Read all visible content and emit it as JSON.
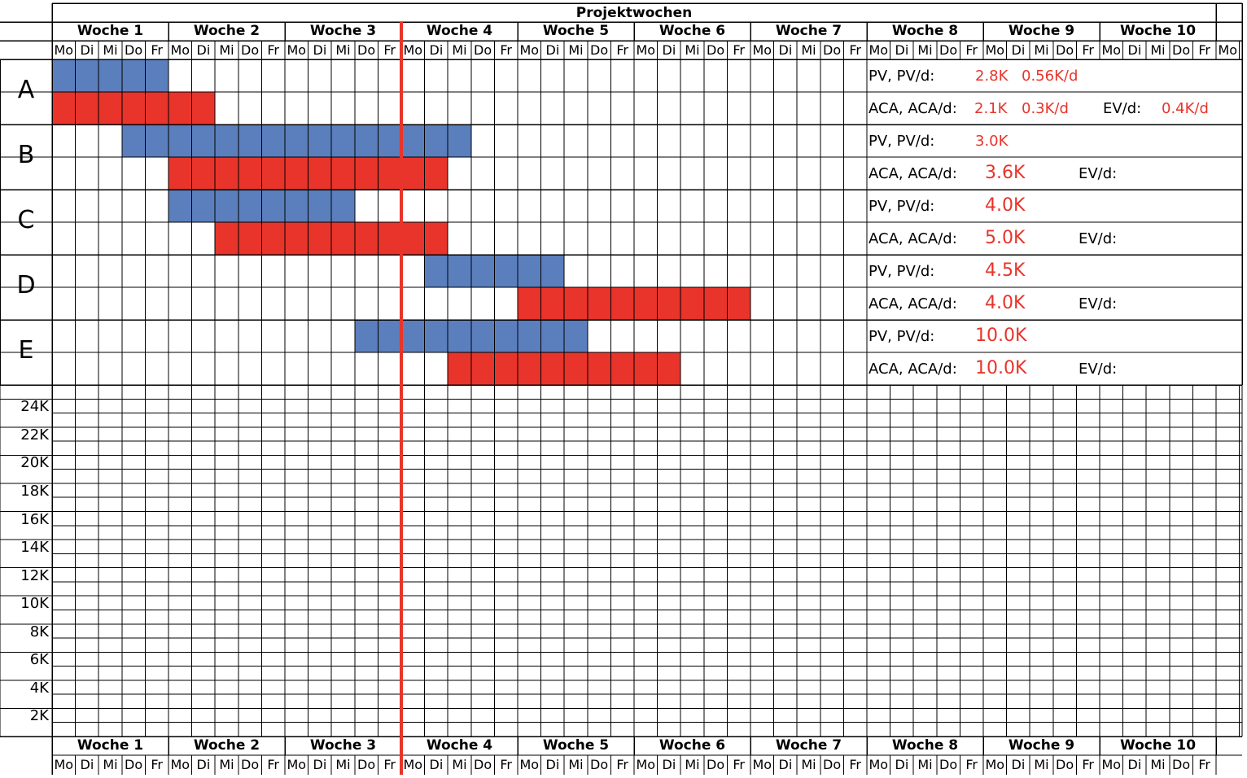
{
  "title": "Projektwochen",
  "weeks": [
    "Woche 1",
    "Woche 2",
    "Woche 3",
    "Woche 4",
    "Woche 5",
    "Woche 6",
    "Woche 7",
    "Woche 8",
    "Woche 9",
    "Woche 10"
  ],
  "days": [
    "Mo",
    "Di",
    "Mi",
    "Do",
    "Fr"
  ],
  "extra_day": "Mo",
  "colors": {
    "planned": "#5b7fbd",
    "actual": "#e8342a",
    "grid": "#000000",
    "today_line": "#e8342a"
  },
  "today_marker_day_index": 15,
  "tasks": [
    {
      "name": "A",
      "planned": {
        "start": 0,
        "length": 5
      },
      "actual": {
        "start": 0,
        "length": 7
      },
      "pv_label": "PV, PV/d:",
      "pv_value": "2.8K",
      "pv_per_day": "0.56K/d",
      "aca_label": "ACA, ACA/d:",
      "aca_value": "2.1K",
      "aca_per_day": "0.3K/d",
      "ev_label": "EV/d:",
      "ev_value": "0.4K/d"
    },
    {
      "name": "B",
      "planned": {
        "start": 3,
        "length": 15
      },
      "actual": {
        "start": 5,
        "length": 12
      },
      "pv_label": "PV, PV/d:",
      "pv_value": "3.0K",
      "pv_per_day": "",
      "aca_label": "ACA, ACA/d:",
      "aca_value": "3.6K",
      "aca_per_day": "",
      "ev_label": "EV/d:",
      "ev_value": ""
    },
    {
      "name": "C",
      "planned": {
        "start": 5,
        "length": 8
      },
      "actual": {
        "start": 7,
        "length": 10
      },
      "pv_label": "PV, PV/d:",
      "pv_value": "4.0K",
      "pv_per_day": "",
      "aca_label": "ACA, ACA/d:",
      "aca_value": "5.0K",
      "aca_per_day": "",
      "ev_label": "EV/d:",
      "ev_value": ""
    },
    {
      "name": "D",
      "planned": {
        "start": 16,
        "length": 6
      },
      "actual": {
        "start": 20,
        "length": 10
      },
      "pv_label": "PV, PV/d:",
      "pv_value": "4.5K",
      "pv_per_day": "",
      "aca_label": "ACA, ACA/d:",
      "aca_value": "4.0K",
      "aca_per_day": "",
      "ev_label": "EV/d:",
      "ev_value": ""
    },
    {
      "name": "E",
      "planned": {
        "start": 13,
        "length": 10
      },
      "actual": {
        "start": 17,
        "length": 10
      },
      "pv_label": "PV, PV/d:",
      "pv_value": "10.0K",
      "pv_per_day": "",
      "aca_label": "ACA, ACA/d:",
      "aca_value": "10.0K",
      "aca_per_day": "",
      "ev_label": "EV/d:",
      "ev_value": ""
    }
  ],
  "y_axis_labels": [
    "24K",
    "22K",
    "20K",
    "18K",
    "16K",
    "14K",
    "12K",
    "10K",
    "8K",
    "6K",
    "4K",
    "2K"
  ]
}
